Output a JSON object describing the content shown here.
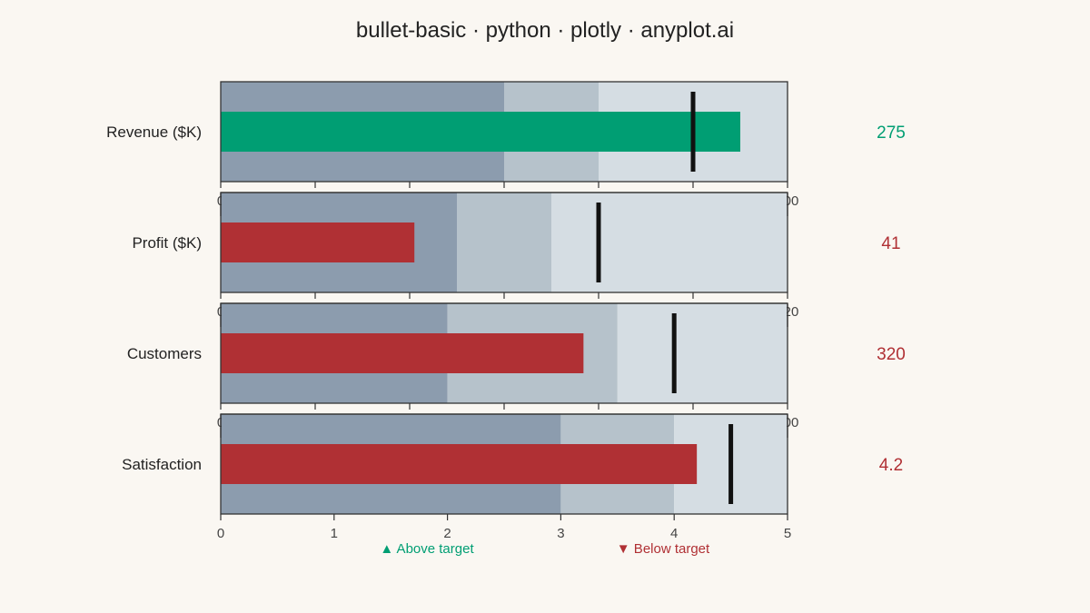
{
  "chart_data": {
    "type": "bullet",
    "title": "bullet-basic · python · plotly · anyplot.ai",
    "colors": {
      "range_poor": "#8c9cae",
      "range_ok": "#b6c2cb",
      "range_good": "#d5dde3",
      "above": "#009e73",
      "below": "#b03034",
      "target": "#111111"
    },
    "metrics": [
      {
        "label": "Revenue ($K)",
        "value": 275,
        "value_label": "275",
        "target": 250,
        "ranges": [
          150,
          200,
          300
        ],
        "status": "above"
      },
      {
        "label": "Profit ($K)",
        "value": 41,
        "value_label": "41",
        "target": 80,
        "ranges": [
          50,
          70,
          120
        ],
        "status": "below"
      },
      {
        "label": "Customers",
        "value": 320,
        "value_label": "320",
        "target": 400,
        "ranges": [
          200,
          350,
          500
        ],
        "status": "below"
      },
      {
        "label": "Satisfaction",
        "value": 4.2,
        "value_label": "4.2",
        "target": 4.5,
        "ranges": [
          3,
          4,
          5
        ],
        "status": "below",
        "ticks": [
          "0",
          "1",
          "2",
          "3",
          "4",
          "5"
        ]
      }
    ],
    "legend": [
      {
        "text": "▲ Above target",
        "status": "above"
      },
      {
        "text": "▼ Below target",
        "status": "below"
      }
    ],
    "partial_tick_labels": [
      "0",
      "00",
      "0",
      "20",
      "0",
      "00"
    ]
  }
}
